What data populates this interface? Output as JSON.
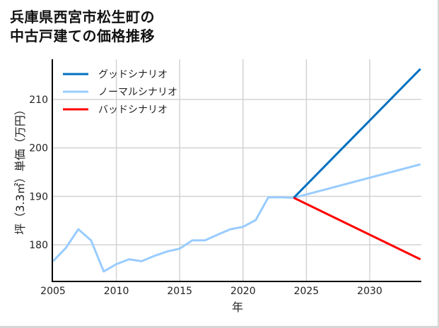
{
  "title_lines": [
    "兵庫県西宮市松生町の",
    "中古戸建ての価格推移"
  ],
  "chart_data": {
    "type": "line",
    "title": "兵庫県西宮市松生町の中古戸建ての価格推移",
    "xlabel": "年",
    "ylabel": "坪（3.3㎡）単価（万円）",
    "xlim": [
      2005,
      2034
    ],
    "ylim": [
      172.5,
      218.5
    ],
    "xticks": [
      2005,
      2010,
      2015,
      2020,
      2025,
      2030
    ],
    "yticks": [
      180,
      190,
      200,
      210
    ],
    "grid": true,
    "legend_position": "upper left",
    "series": [
      {
        "name": "グッドシナリオ",
        "color": "#0070c0",
        "x": [
          2024,
          2034
        ],
        "values": [
          189.7,
          216.3
        ]
      },
      {
        "name": "ノーマルシナリオ",
        "color": "#99ccff",
        "x": [
          2005,
          2006,
          2007,
          2008,
          2009,
          2010,
          2011,
          2012,
          2013,
          2014,
          2015,
          2016,
          2017,
          2018,
          2019,
          2020,
          2021,
          2022,
          2023,
          2024,
          2034
        ],
        "values": [
          176.6,
          179.3,
          183.2,
          180.9,
          174.5,
          176.0,
          177.0,
          176.6,
          177.7,
          178.6,
          179.2,
          180.9,
          180.9,
          182.1,
          183.2,
          183.7,
          185.1,
          189.8,
          189.8,
          189.7,
          196.6
        ]
      },
      {
        "name": "バッドシナリオ",
        "color": "#ff0000",
        "x": [
          2024,
          2034
        ],
        "values": [
          189.7,
          177.0
        ]
      }
    ]
  }
}
